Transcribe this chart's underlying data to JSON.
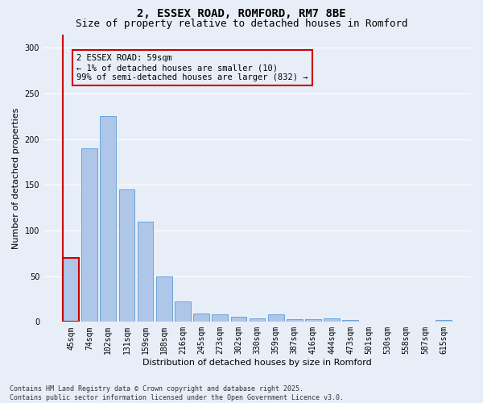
{
  "title1": "2, ESSEX ROAD, ROMFORD, RM7 8BE",
  "title2": "Size of property relative to detached houses in Romford",
  "xlabel": "Distribution of detached houses by size in Romford",
  "ylabel": "Number of detached properties",
  "categories": [
    "45sqm",
    "74sqm",
    "102sqm",
    "131sqm",
    "159sqm",
    "188sqm",
    "216sqm",
    "245sqm",
    "273sqm",
    "302sqm",
    "330sqm",
    "359sqm",
    "387sqm",
    "416sqm",
    "444sqm",
    "473sqm",
    "501sqm",
    "530sqm",
    "558sqm",
    "587sqm",
    "615sqm"
  ],
  "values": [
    70,
    190,
    225,
    145,
    110,
    50,
    22,
    9,
    8,
    6,
    4,
    8,
    3,
    3,
    4,
    2,
    0,
    0,
    0,
    0,
    2
  ],
  "bar_color": "#aec6e8",
  "bar_edge_color": "#5b9bd5",
  "highlight_bar_index": 0,
  "highlight_bar_color": "#aec6e8",
  "highlight_bar_edge_color": "#cc0000",
  "annotation_text": "2 ESSEX ROAD: 59sqm\n← 1% of detached houses are smaller (10)\n99% of semi-detached houses are larger (832) →",
  "annotation_box_edge_color": "#cc0000",
  "ylim": [
    0,
    315
  ],
  "yticks": [
    0,
    50,
    100,
    150,
    200,
    250,
    300
  ],
  "background_color": "#e8eef8",
  "footer_text": "Contains HM Land Registry data © Crown copyright and database right 2025.\nContains public sector information licensed under the Open Government Licence v3.0.",
  "grid_color": "#ffffff",
  "title_fontsize": 10,
  "subtitle_fontsize": 9,
  "tick_fontsize": 7,
  "label_fontsize": 8,
  "annotation_fontsize": 7.5
}
